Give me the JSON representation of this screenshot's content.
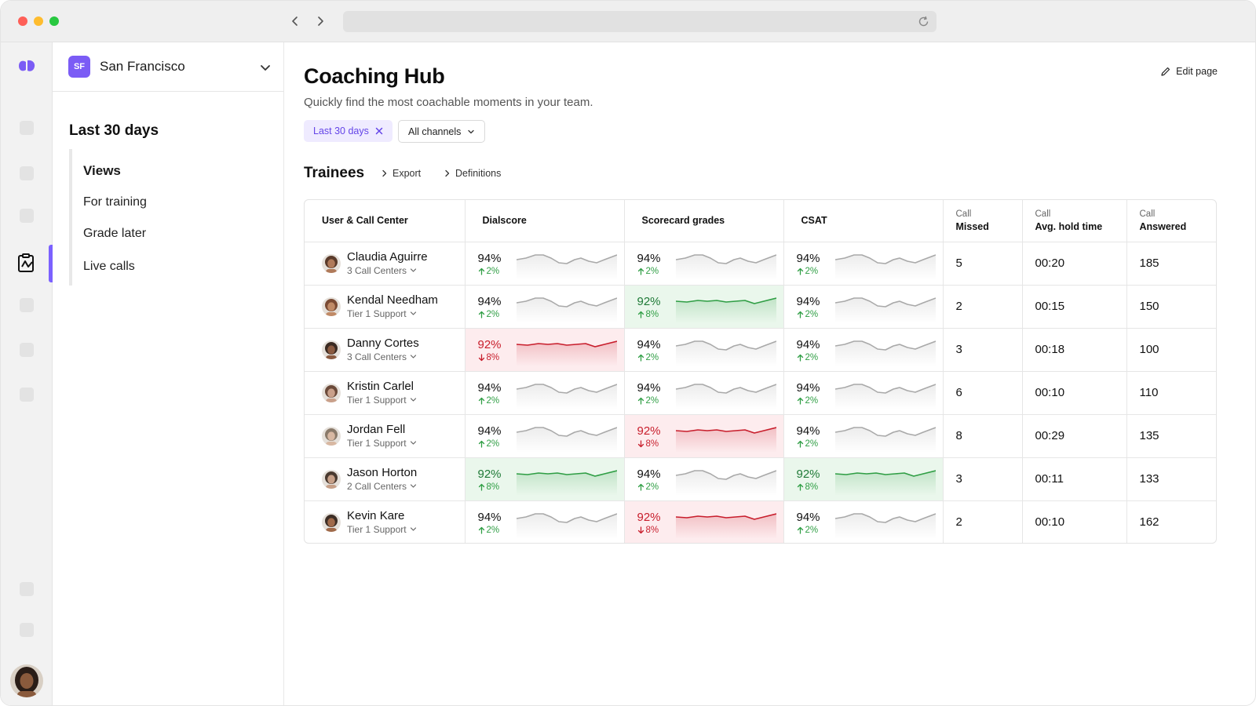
{
  "browser": {
    "url": ""
  },
  "sidebar": {
    "org_initials": "SF",
    "org_name": "San Francisco",
    "title": "Last 30 days",
    "views_label": "Views",
    "items": [
      {
        "label": "For training"
      },
      {
        "label": "Grade later"
      },
      {
        "label": "Live calls"
      }
    ]
  },
  "header": {
    "title": "Coaching Hub",
    "subtitle": "Quickly find the most coachable moments in your team.",
    "edit_label": "Edit page"
  },
  "filters": {
    "date_label": "Last 30 days",
    "channel_label": "All channels"
  },
  "section": {
    "title": "Trainees",
    "export_label": "Export",
    "definitions_label": "Definitions"
  },
  "table": {
    "columns": {
      "user": "User & Call Center",
      "dialscore": "Dialscore",
      "scorecard": "Scorecard grades",
      "csat": "CSAT",
      "missed_top": "Call",
      "missed": "Missed",
      "hold_top": "Call",
      "hold": "Avg. hold time",
      "answered_top": "Call",
      "answered": "Answered"
    },
    "rows": [
      {
        "name": "Claudia Aguirre",
        "team": "3 Call Centers",
        "dial": {
          "value": "94%",
          "delta": "2%",
          "trend": "neutral"
        },
        "score": {
          "value": "94%",
          "delta": "2%",
          "trend": "neutral"
        },
        "csat": {
          "value": "94%",
          "delta": "2%",
          "trend": "neutral"
        },
        "missed": "5",
        "hold": "00:20",
        "answered": "185"
      },
      {
        "name": "Kendal Needham",
        "team": "Tier 1 Support",
        "dial": {
          "value": "94%",
          "delta": "2%",
          "trend": "neutral"
        },
        "score": {
          "value": "92%",
          "delta": "8%",
          "trend": "good"
        },
        "csat": {
          "value": "94%",
          "delta": "2%",
          "trend": "neutral"
        },
        "missed": "2",
        "hold": "00:15",
        "answered": "150"
      },
      {
        "name": "Danny Cortes",
        "team": "3 Call Centers",
        "dial": {
          "value": "92%",
          "delta": "8%",
          "trend": "bad"
        },
        "score": {
          "value": "94%",
          "delta": "2%",
          "trend": "neutral"
        },
        "csat": {
          "value": "94%",
          "delta": "2%",
          "trend": "neutral"
        },
        "missed": "3",
        "hold": "00:18",
        "answered": "100"
      },
      {
        "name": "Kristin Carlel",
        "team": "Tier 1 Support",
        "dial": {
          "value": "94%",
          "delta": "2%",
          "trend": "neutral"
        },
        "score": {
          "value": "94%",
          "delta": "2%",
          "trend": "neutral"
        },
        "csat": {
          "value": "94%",
          "delta": "2%",
          "trend": "neutral"
        },
        "missed": "6",
        "hold": "00:10",
        "answered": "110"
      },
      {
        "name": "Jordan Fell",
        "team": "Tier 1 Support",
        "dial": {
          "value": "94%",
          "delta": "2%",
          "trend": "neutral"
        },
        "score": {
          "value": "92%",
          "delta": "8%",
          "trend": "bad"
        },
        "csat": {
          "value": "94%",
          "delta": "2%",
          "trend": "neutral"
        },
        "missed": "8",
        "hold": "00:29",
        "answered": "135"
      },
      {
        "name": "Jason Horton",
        "team": "2 Call Centers",
        "dial": {
          "value": "92%",
          "delta": "8%",
          "trend": "good"
        },
        "score": {
          "value": "94%",
          "delta": "2%",
          "trend": "neutral"
        },
        "csat": {
          "value": "92%",
          "delta": "8%",
          "trend": "good"
        },
        "missed": "3",
        "hold": "00:11",
        "answered": "133"
      },
      {
        "name": "Kevin Kare",
        "team": "Tier 1 Support",
        "dial": {
          "value": "94%",
          "delta": "2%",
          "trend": "neutral"
        },
        "score": {
          "value": "92%",
          "delta": "8%",
          "trend": "bad"
        },
        "csat": {
          "value": "94%",
          "delta": "2%",
          "trend": "neutral"
        },
        "missed": "2",
        "hold": "00:10",
        "answered": "162"
      }
    ]
  },
  "colors": {
    "accent": "#7b5cf5",
    "good": "#2f9e44",
    "bad": "#c81e2c",
    "neutral_line": "#a9a9a9"
  },
  "icons": {
    "logo": "dialpad-logo-icon",
    "active_nav": "coaching-icon",
    "edit": "pencil-icon",
    "chip_remove": "close-icon",
    "chevron": "chevron-down-icon",
    "arrow_up": "arrow-up-icon",
    "arrow_down": "arrow-down-icon"
  }
}
